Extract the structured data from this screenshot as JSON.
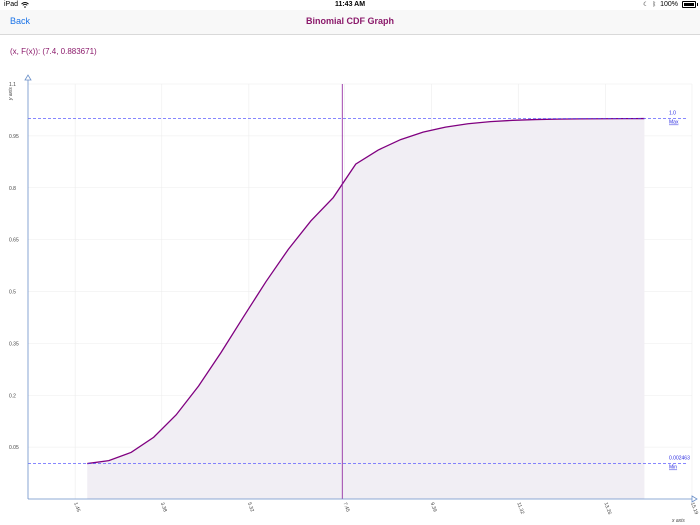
{
  "status_bar": {
    "device": "iPad",
    "time": "11:43 AM",
    "battery": "100%",
    "wifi_icon": "wifi-icon",
    "moon_icon": "moon-icon",
    "bluetooth_icon": "bluetooth-icon"
  },
  "nav": {
    "back_label": "Back",
    "title": "Binomial CDF Graph"
  },
  "readout": "(x, F(x)): (7.4, 0.883671)",
  "colors": {
    "curve": "#800080",
    "fill": "#f1eef4",
    "crosshair": "#8a1a9a",
    "ref_line": "#4040ff",
    "title": "#8b1a6b",
    "back": "#1a73e8"
  },
  "chart_data": {
    "type": "line",
    "title": "",
    "xlabel": "x axis",
    "ylabel": "y axis",
    "xlim": [
      0.4,
      15.19
    ],
    "ylim": [
      -0.1,
      1.1
    ],
    "x_ticks": [
      "1.45",
      "3.38",
      "5.32",
      "7.45",
      "9.39",
      "11.32",
      "13.26",
      "15.19"
    ],
    "x_tick_values": [
      1.45,
      3.38,
      5.32,
      7.45,
      9.39,
      11.32,
      13.26,
      15.19
    ],
    "y_ticks": [
      "0.05",
      "0.2",
      "0.35",
      "0.5",
      "0.65",
      "0.8",
      "0.95",
      "1.1"
    ],
    "y_tick_values": [
      0.05,
      0.2,
      0.35,
      0.5,
      0.65,
      0.8,
      0.95,
      1.1
    ],
    "series": [
      {
        "x": [
          1.72,
          2.2,
          2.7,
          3.2,
          3.7,
          4.2,
          4.7,
          5.2,
          5.7,
          6.2,
          6.7,
          7.2,
          7.4,
          7.7,
          8.2,
          8.7,
          9.2,
          9.7,
          10.2,
          10.7,
          11.2,
          11.7,
          12.2,
          12.7,
          13.2,
          13.7,
          14.13
        ],
        "y": [
          0.002463,
          0.0109,
          0.0349,
          0.0786,
          0.1433,
          0.2268,
          0.3237,
          0.4268,
          0.5284,
          0.6223,
          0.7041,
          0.7717,
          0.8837,
          0.8683,
          0.9091,
          0.9393,
          0.9607,
          0.9754,
          0.9851,
          0.9912,
          0.995,
          0.9972,
          0.9985,
          0.9992,
          0.9996,
          0.9998,
          1.0
        ]
      }
    ],
    "shaded_area": true,
    "crosshair": {
      "x": 7.4,
      "y": 0.883671
    },
    "reference_lines": [
      {
        "value": 1.0,
        "label_value": "1.0",
        "label_name": "Max"
      },
      {
        "value": 0.002463,
        "label_value": "0.002463",
        "label_name": "Min"
      }
    ],
    "grid": true
  }
}
